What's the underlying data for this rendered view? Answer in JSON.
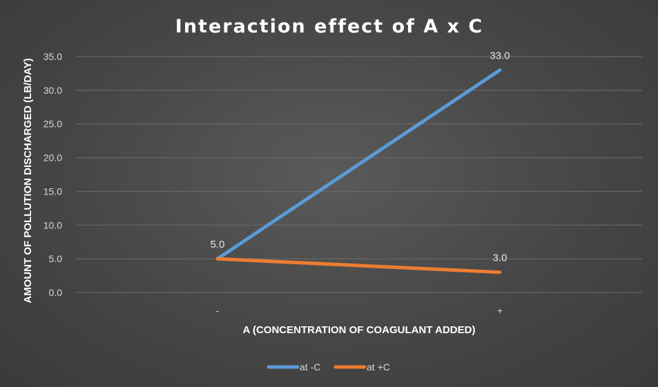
{
  "chart_data": {
    "type": "line",
    "title": "Interaction effect of A x C",
    "xlabel": "A (CONCENTRATION OF COAGULANT ADDED)",
    "ylabel": "AMOUNT OF POLLUTION DISCHARGED (LB/DAY)",
    "categories": [
      "-",
      "+"
    ],
    "ylim": [
      0,
      35
    ],
    "yticks": [
      "0.0",
      "5.0",
      "10.0",
      "15.0",
      "20.0",
      "25.0",
      "30.0",
      "35.0"
    ],
    "grid": true,
    "legend_position": "bottom",
    "series": [
      {
        "name": "at -C",
        "values": [
          5.0,
          33.0
        ],
        "labels": [
          "5.0",
          "33.0"
        ],
        "color": "#5b9bd5"
      },
      {
        "name": "at +C",
        "values": [
          5.0,
          3.0
        ],
        "labels": [
          "",
          "3.0"
        ],
        "color": "#ed7d31"
      }
    ]
  }
}
